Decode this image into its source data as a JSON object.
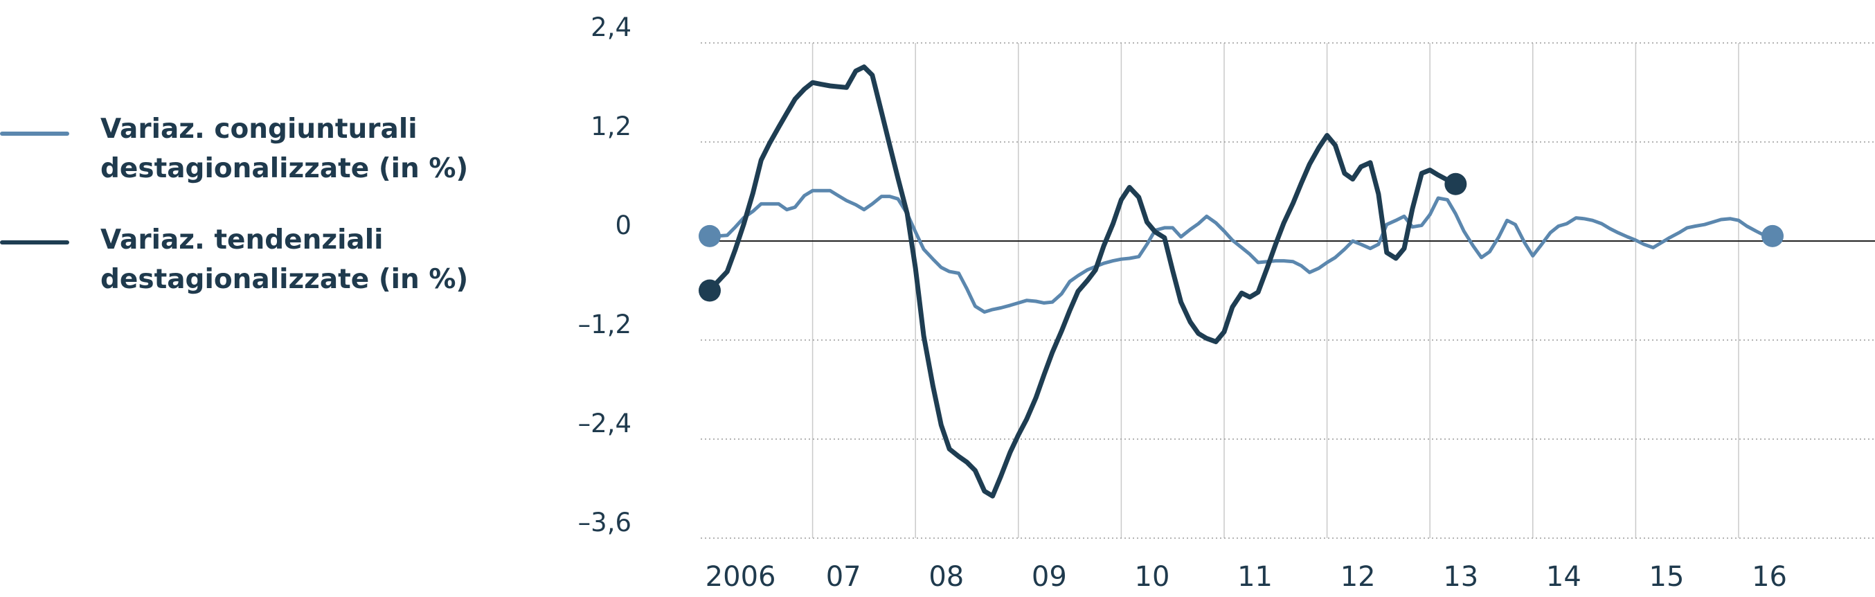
{
  "chart_data": {
    "type": "line",
    "title": "",
    "xlabel": "",
    "ylabel": "",
    "ylim": [
      -3.6,
      2.4
    ],
    "yticks": [
      "2,4",
      "1,2",
      "0",
      "–1,2",
      "–2,4",
      "–3,6"
    ],
    "ytick_values": [
      2.4,
      1.2,
      0,
      -1.2,
      -2.4,
      -3.6
    ],
    "xlim": [
      2006.0,
      2016.7
    ],
    "xticks": [
      "2006",
      "07",
      "08",
      "09",
      "10",
      "11",
      "12",
      "13",
      "14",
      "15",
      "16"
    ],
    "xtick_positions": [
      2006.3,
      2007.3,
      2008.3,
      2009.3,
      2010.3,
      2011.3,
      2012.3,
      2013.3,
      2014.3,
      2015.3,
      2016.3
    ],
    "grid": {
      "horizontal": "dotted",
      "vertical": "year boundaries",
      "zero_line": true
    },
    "legend_position": "left",
    "series": [
      {
        "name": "Variaz. congiunturali destagionalizzate (in %)",
        "color": "#5b87ae",
        "points": [
          [
            2006.0,
            0.06
          ],
          [
            2006.08,
            0.06
          ],
          [
            2006.17,
            0.07
          ],
          [
            2006.25,
            0.17
          ],
          [
            2006.33,
            0.28
          ],
          [
            2006.42,
            0.36
          ],
          [
            2006.5,
            0.45
          ],
          [
            2006.58,
            0.45
          ],
          [
            2006.67,
            0.45
          ],
          [
            2006.75,
            0.38
          ],
          [
            2006.83,
            0.41
          ],
          [
            2006.92,
            0.55
          ],
          [
            2007.0,
            0.61
          ],
          [
            2007.08,
            0.61
          ],
          [
            2007.17,
            0.61
          ],
          [
            2007.25,
            0.55
          ],
          [
            2007.33,
            0.49
          ],
          [
            2007.42,
            0.44
          ],
          [
            2007.5,
            0.38
          ],
          [
            2007.58,
            0.45
          ],
          [
            2007.67,
            0.54
          ],
          [
            2007.75,
            0.54
          ],
          [
            2007.83,
            0.51
          ],
          [
            2007.92,
            0.33
          ],
          [
            2008.0,
            0.11
          ],
          [
            2008.08,
            -0.1
          ],
          [
            2008.17,
            -0.22
          ],
          [
            2008.25,
            -0.32
          ],
          [
            2008.33,
            -0.37
          ],
          [
            2008.42,
            -0.39
          ],
          [
            2008.5,
            -0.58
          ],
          [
            2008.58,
            -0.79
          ],
          [
            2008.67,
            -0.86
          ],
          [
            2008.75,
            -0.83
          ],
          [
            2008.83,
            -0.81
          ],
          [
            2008.92,
            -0.78
          ],
          [
            2009.0,
            -0.75
          ],
          [
            2009.08,
            -0.72
          ],
          [
            2009.17,
            -0.73
          ],
          [
            2009.25,
            -0.75
          ],
          [
            2009.33,
            -0.74
          ],
          [
            2009.42,
            -0.64
          ],
          [
            2009.5,
            -0.49
          ],
          [
            2009.58,
            -0.42
          ],
          [
            2009.67,
            -0.35
          ],
          [
            2009.75,
            -0.31
          ],
          [
            2009.83,
            -0.27
          ],
          [
            2009.92,
            -0.24
          ],
          [
            2010.0,
            -0.22
          ],
          [
            2010.08,
            -0.21
          ],
          [
            2010.17,
            -0.19
          ],
          [
            2010.25,
            -0.04
          ],
          [
            2010.33,
            0.13
          ],
          [
            2010.42,
            0.16
          ],
          [
            2010.5,
            0.16
          ],
          [
            2010.58,
            0.05
          ],
          [
            2010.67,
            0.14
          ],
          [
            2010.75,
            0.21
          ],
          [
            2010.83,
            0.3
          ],
          [
            2010.92,
            0.22
          ],
          [
            2011.0,
            0.12
          ],
          [
            2011.08,
            0.01
          ],
          [
            2011.17,
            -0.08
          ],
          [
            2011.25,
            -0.16
          ],
          [
            2011.33,
            -0.26
          ],
          [
            2011.42,
            -0.25
          ],
          [
            2011.5,
            -0.24
          ],
          [
            2011.58,
            -0.24
          ],
          [
            2011.67,
            -0.25
          ],
          [
            2011.75,
            -0.3
          ],
          [
            2011.83,
            -0.38
          ],
          [
            2011.92,
            -0.33
          ],
          [
            2012.0,
            -0.26
          ],
          [
            2012.08,
            -0.2
          ],
          [
            2012.17,
            -0.1
          ],
          [
            2012.25,
            0.0
          ],
          [
            2012.33,
            -0.04
          ],
          [
            2012.42,
            -0.09
          ],
          [
            2012.5,
            -0.04
          ],
          [
            2012.58,
            0.2
          ],
          [
            2012.67,
            0.25
          ],
          [
            2012.75,
            0.3
          ],
          [
            2012.83,
            0.17
          ],
          [
            2012.92,
            0.19
          ],
          [
            2013.0,
            0.32
          ],
          [
            2013.08,
            0.52
          ],
          [
            2013.17,
            0.5
          ],
          [
            2013.25,
            0.33
          ],
          [
            2013.33,
            0.12
          ],
          [
            2013.42,
            -0.06
          ],
          [
            2013.5,
            -0.2
          ],
          [
            2013.58,
            -0.13
          ],
          [
            2013.67,
            0.05
          ],
          [
            2013.75,
            0.25
          ],
          [
            2013.83,
            0.2
          ],
          [
            2013.92,
            -0.02
          ],
          [
            2014.0,
            -0.18
          ],
          [
            2014.08,
            -0.05
          ],
          [
            2014.17,
            0.1
          ],
          [
            2014.25,
            0.18
          ],
          [
            2014.33,
            0.21
          ],
          [
            2014.42,
            0.28
          ],
          [
            2014.5,
            0.27
          ],
          [
            2014.58,
            0.25
          ],
          [
            2014.67,
            0.21
          ],
          [
            2014.75,
            0.15
          ],
          [
            2014.83,
            0.1
          ],
          [
            2014.92,
            0.05
          ],
          [
            2015.0,
            0.01
          ],
          [
            2015.08,
            -0.04
          ],
          [
            2015.17,
            -0.08
          ],
          [
            2015.25,
            -0.02
          ],
          [
            2015.33,
            0.04
          ],
          [
            2015.42,
            0.1
          ],
          [
            2015.5,
            0.16
          ],
          [
            2015.58,
            0.18
          ],
          [
            2015.67,
            0.2
          ],
          [
            2015.75,
            0.23
          ],
          [
            2015.83,
            0.26
          ],
          [
            2015.92,
            0.27
          ],
          [
            2016.0,
            0.25
          ],
          [
            2016.08,
            0.18
          ],
          [
            2016.17,
            0.12
          ],
          [
            2016.25,
            0.07
          ],
          [
            2016.33,
            0.06
          ]
        ]
      },
      {
        "name": "Variaz. tendenziali destagionalizzate (in %)",
        "color": "#1e3d52",
        "points": [
          [
            2006.0,
            -0.6
          ],
          [
            2006.08,
            -0.49
          ],
          [
            2006.17,
            -0.37
          ],
          [
            2006.25,
            -0.1
          ],
          [
            2006.33,
            0.2
          ],
          [
            2006.42,
            0.58
          ],
          [
            2006.5,
            0.98
          ],
          [
            2006.58,
            1.18
          ],
          [
            2006.67,
            1.38
          ],
          [
            2006.75,
            1.55
          ],
          [
            2006.83,
            1.72
          ],
          [
            2006.92,
            1.84
          ],
          [
            2007.0,
            1.92
          ],
          [
            2007.08,
            1.9
          ],
          [
            2007.17,
            1.88
          ],
          [
            2007.25,
            1.87
          ],
          [
            2007.33,
            1.86
          ],
          [
            2007.42,
            2.06
          ],
          [
            2007.5,
            2.11
          ],
          [
            2007.58,
            2.01
          ],
          [
            2007.67,
            1.56
          ],
          [
            2007.75,
            1.16
          ],
          [
            2007.83,
            0.76
          ],
          [
            2007.92,
            0.33
          ],
          [
            2008.0,
            -0.33
          ],
          [
            2008.08,
            -1.15
          ],
          [
            2008.17,
            -1.76
          ],
          [
            2008.25,
            -2.23
          ],
          [
            2008.33,
            -2.52
          ],
          [
            2008.42,
            -2.61
          ],
          [
            2008.5,
            -2.68
          ],
          [
            2008.58,
            -2.78
          ],
          [
            2008.67,
            -3.03
          ],
          [
            2008.75,
            -3.09
          ],
          [
            2008.83,
            -2.85
          ],
          [
            2008.92,
            -2.56
          ],
          [
            2009.0,
            -2.35
          ],
          [
            2009.08,
            -2.16
          ],
          [
            2009.17,
            -1.9
          ],
          [
            2009.25,
            -1.62
          ],
          [
            2009.33,
            -1.35
          ],
          [
            2009.42,
            -1.09
          ],
          [
            2009.5,
            -0.84
          ],
          [
            2009.58,
            -0.61
          ],
          [
            2009.67,
            -0.48
          ],
          [
            2009.75,
            -0.35
          ],
          [
            2009.83,
            -0.06
          ],
          [
            2009.92,
            0.21
          ],
          [
            2010.0,
            0.5
          ],
          [
            2010.08,
            0.65
          ],
          [
            2010.17,
            0.53
          ],
          [
            2010.25,
            0.23
          ],
          [
            2010.33,
            0.11
          ],
          [
            2010.42,
            0.04
          ],
          [
            2010.5,
            -0.36
          ],
          [
            2010.58,
            -0.74
          ],
          [
            2010.67,
            -0.98
          ],
          [
            2010.75,
            -1.12
          ],
          [
            2010.83,
            -1.18
          ],
          [
            2010.92,
            -1.22
          ],
          [
            2011.0,
            -1.1
          ],
          [
            2011.08,
            -0.8
          ],
          [
            2011.17,
            -0.63
          ],
          [
            2011.25,
            -0.68
          ],
          [
            2011.33,
            -0.62
          ],
          [
            2011.42,
            -0.32
          ],
          [
            2011.5,
            -0.04
          ],
          [
            2011.58,
            0.22
          ],
          [
            2011.67,
            0.46
          ],
          [
            2011.75,
            0.7
          ],
          [
            2011.83,
            0.93
          ],
          [
            2011.92,
            1.13
          ],
          [
            2012.0,
            1.28
          ],
          [
            2012.08,
            1.16
          ],
          [
            2012.17,
            0.82
          ],
          [
            2012.25,
            0.75
          ],
          [
            2012.33,
            0.9
          ],
          [
            2012.42,
            0.95
          ],
          [
            2012.5,
            0.57
          ],
          [
            2012.58,
            -0.14
          ],
          [
            2012.67,
            -0.21
          ],
          [
            2012.75,
            -0.09
          ],
          [
            2012.83,
            0.39
          ],
          [
            2012.92,
            0.82
          ],
          [
            2013.0,
            0.86
          ],
          [
            2013.08,
            0.8
          ],
          [
            2013.17,
            0.74
          ],
          [
            2013.25,
            0.69
          ]
        ]
      }
    ]
  },
  "legend": {
    "items": [
      {
        "label": "Variaz. congiunturali\ndestagionalizzate (in %)",
        "color": "#5b87ae"
      },
      {
        "label": "Variaz. tendenziali\ndestagionalizzate (in %)",
        "color": "#1e3d52"
      }
    ]
  }
}
